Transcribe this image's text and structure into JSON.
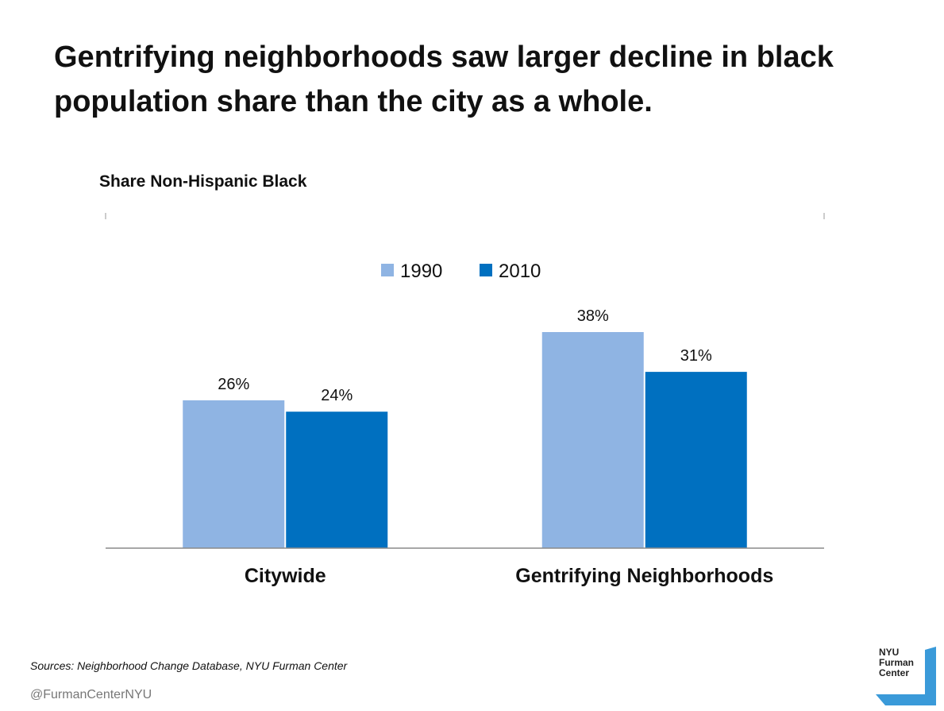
{
  "title": "Gentrifying neighborhoods saw larger decline in black population share than the city as a whole.",
  "chart_data": {
    "type": "bar",
    "subtitle": "Share Non-Hispanic Black",
    "categories": [
      "Citywide",
      "Gentrifying Neighborhoods"
    ],
    "series": [
      {
        "name": "1990",
        "values": [
          26,
          38
        ],
        "labels": [
          "26%",
          "38%"
        ],
        "color": "#8FB4E3"
      },
      {
        "name": "2010",
        "values": [
          24,
          31
        ],
        "labels": [
          "24%",
          "31%"
        ],
        "color": "#0070C0"
      }
    ],
    "ylim": [
      0,
      40
    ],
    "legend": "top-center",
    "grid": false
  },
  "footer": {
    "sources": "Sources: Neighborhood Change Database, NYU Furman Center",
    "handle": "@FurmanCenterNYU"
  },
  "logo": {
    "line1": "NYU",
    "line2": "Furman",
    "line3": "Center",
    "color": "#3A9AD9"
  }
}
